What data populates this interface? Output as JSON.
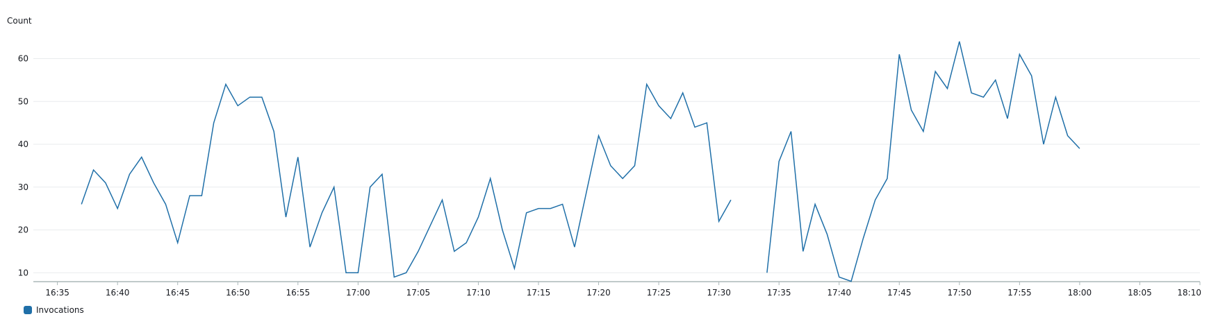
{
  "chart_data": {
    "type": "line",
    "ylabel": "Count",
    "xlabel": "",
    "ylim": [
      8,
      64
    ],
    "yticks": [
      10,
      20,
      30,
      40,
      50,
      60
    ],
    "xlim": [
      "16:33",
      "18:10"
    ],
    "xticks": [
      "16:35",
      "16:40",
      "16:45",
      "16:50",
      "16:55",
      "17:00",
      "17:05",
      "17:10",
      "17:15",
      "17:20",
      "17:25",
      "17:30",
      "17:35",
      "17:40",
      "17:45",
      "17:50",
      "17:55",
      "18:00",
      "18:05",
      "18:10"
    ],
    "grid": "horizontal",
    "legend_position": "bottom-left",
    "colors": {
      "series": "#1f6fa8",
      "grid": "#e9ebed",
      "axis": "#aab7b8"
    },
    "series": [
      {
        "name": "Invocations",
        "points": [
          [
            "16:37",
            26
          ],
          [
            "16:38",
            34
          ],
          [
            "16:39",
            31
          ],
          [
            "16:40",
            25
          ],
          [
            "16:41",
            33
          ],
          [
            "16:42",
            37
          ],
          [
            "16:43",
            31
          ],
          [
            "16:44",
            26
          ],
          [
            "16:45",
            17
          ],
          [
            "16:46",
            28
          ],
          [
            "16:47",
            28
          ],
          [
            "16:48",
            45
          ],
          [
            "16:49",
            54
          ],
          [
            "16:50",
            49
          ],
          [
            "16:51",
            51
          ],
          [
            "16:52",
            51
          ],
          [
            "16:53",
            43
          ],
          [
            "16:54",
            23
          ],
          [
            "16:55",
            37
          ],
          [
            "16:56",
            16
          ],
          [
            "16:57",
            24
          ],
          [
            "16:58",
            30
          ],
          [
            "16:59",
            10
          ],
          [
            "17:00",
            10
          ],
          [
            "17:01",
            30
          ],
          [
            "17:02",
            33
          ],
          [
            "17:03",
            9
          ],
          [
            "17:04",
            10
          ],
          [
            "17:05",
            15
          ],
          [
            "17:06",
            21
          ],
          [
            "17:07",
            27
          ],
          [
            "17:08",
            15
          ],
          [
            "17:09",
            17
          ],
          [
            "17:10",
            23
          ],
          [
            "17:11",
            32
          ],
          [
            "17:12",
            20
          ],
          [
            "17:13",
            11
          ],
          [
            "17:14",
            24
          ],
          [
            "17:15",
            25
          ],
          [
            "17:16",
            25
          ],
          [
            "17:17",
            26
          ],
          [
            "17:18",
            16
          ],
          [
            "17:19",
            29
          ],
          [
            "17:20",
            42
          ],
          [
            "17:21",
            35
          ],
          [
            "17:22",
            32
          ],
          [
            "17:23",
            35
          ],
          [
            "17:24",
            54
          ],
          [
            "17:25",
            49
          ],
          [
            "17:26",
            46
          ],
          [
            "17:27",
            52
          ],
          [
            "17:28",
            44
          ],
          [
            "17:29",
            45
          ],
          [
            "17:30",
            22
          ],
          [
            "17:31",
            27
          ],
          null,
          [
            "17:34",
            10
          ],
          [
            "17:35",
            36
          ],
          [
            "17:36",
            43
          ],
          [
            "17:37",
            15
          ],
          [
            "17:38",
            26
          ],
          [
            "17:39",
            19
          ],
          [
            "17:40",
            9
          ],
          [
            "17:41",
            8
          ],
          [
            "17:42",
            18
          ],
          [
            "17:43",
            27
          ],
          [
            "17:44",
            32
          ],
          [
            "17:45",
            61
          ],
          [
            "17:46",
            48
          ],
          [
            "17:47",
            43
          ],
          [
            "17:48",
            57
          ],
          [
            "17:49",
            53
          ],
          [
            "17:50",
            64
          ],
          [
            "17:51",
            52
          ],
          [
            "17:52",
            51
          ],
          [
            "17:53",
            55
          ],
          [
            "17:54",
            46
          ],
          [
            "17:55",
            61
          ],
          [
            "17:56",
            56
          ],
          [
            "17:57",
            40
          ],
          [
            "17:58",
            51
          ],
          [
            "17:59",
            42
          ],
          [
            "18:00",
            39
          ]
        ]
      }
    ]
  }
}
